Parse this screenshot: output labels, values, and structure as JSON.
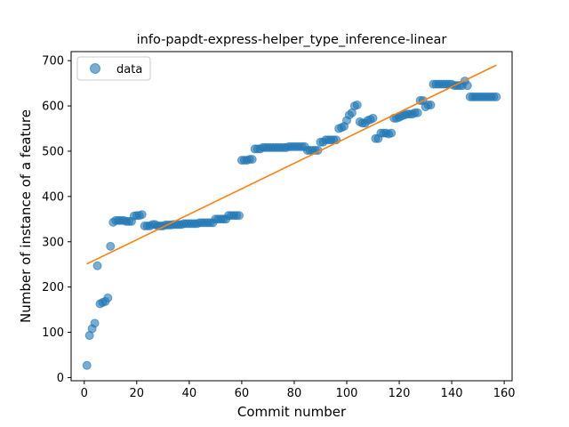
{
  "chart_data": {
    "type": "scatter",
    "title": "info-papdt-express-helper_type_inference-linear",
    "xlabel": "Commit number",
    "ylabel": "Number of instance of a feature",
    "xlim": [
      -5,
      163
    ],
    "ylim": [
      -7,
      720
    ],
    "xticks": [
      0,
      20,
      40,
      60,
      80,
      100,
      120,
      140,
      160
    ],
    "yticks": [
      0,
      100,
      200,
      300,
      400,
      500,
      600,
      700
    ],
    "grid": false,
    "legend": {
      "placement": "top-left",
      "entries": [
        "data"
      ]
    },
    "colors": {
      "data": "#1f77b4",
      "fit": "#ff7f0e"
    },
    "series": [
      {
        "name": "data",
        "kind": "scatter",
        "x": [
          1,
          2,
          3,
          4,
          5,
          6,
          7,
          8,
          9,
          10,
          11,
          12,
          13,
          14,
          15,
          16,
          17,
          18,
          19,
          20,
          21,
          22,
          23,
          24,
          25,
          26,
          27,
          28,
          29,
          30,
          31,
          32,
          33,
          34,
          35,
          36,
          37,
          38,
          39,
          40,
          41,
          42,
          43,
          44,
          45,
          46,
          47,
          48,
          49,
          50,
          51,
          52,
          53,
          54,
          55,
          56,
          57,
          58,
          59,
          60,
          61,
          62,
          63,
          64,
          65,
          66,
          67,
          68,
          69,
          70,
          71,
          72,
          73,
          74,
          75,
          76,
          77,
          78,
          79,
          80,
          81,
          82,
          83,
          84,
          85,
          86,
          87,
          88,
          89,
          90,
          91,
          92,
          93,
          94,
          95,
          96,
          97,
          98,
          99,
          100,
          101,
          102,
          103,
          104,
          105,
          106,
          107,
          108,
          109,
          110,
          111,
          112,
          113,
          114,
          115,
          116,
          117,
          118,
          119,
          120,
          121,
          122,
          123,
          124,
          125,
          126,
          127,
          128,
          129,
          130,
          131,
          132,
          133,
          134,
          135,
          136,
          137,
          138,
          139,
          140,
          141,
          142,
          143,
          144,
          145,
          146,
          147,
          148,
          149,
          150,
          151,
          152,
          153,
          154,
          155,
          156,
          157
        ],
        "y": [
          27,
          93,
          108,
          120,
          247,
          163,
          166,
          168,
          176,
          290,
          343,
          347,
          347,
          347,
          347,
          345,
          345,
          345,
          357,
          358,
          358,
          360,
          335,
          335,
          335,
          338,
          338,
          335,
          335,
          335,
          337,
          337,
          337,
          338,
          338,
          338,
          338,
          340,
          340,
          340,
          340,
          340,
          340,
          342,
          342,
          342,
          342,
          342,
          342,
          350,
          350,
          350,
          350,
          350,
          358,
          358,
          358,
          358,
          358,
          480,
          480,
          480,
          482,
          482,
          505,
          505,
          505,
          508,
          508,
          508,
          508,
          508,
          508,
          508,
          508,
          508,
          508,
          510,
          510,
          510,
          510,
          510,
          510,
          510,
          502,
          502,
          502,
          502,
          502,
          520,
          520,
          525,
          525,
          525,
          525,
          525,
          550,
          552,
          555,
          568,
          580,
          585,
          600,
          602,
          565,
          562,
          562,
          568,
          570,
          573,
          528,
          528,
          540,
          540,
          540,
          538,
          540,
          573,
          573,
          575,
          578,
          580,
          582,
          582,
          582,
          585,
          585,
          612,
          612,
          598,
          602,
          602,
          648,
          648,
          648,
          648,
          648,
          648,
          648,
          648,
          645,
          645,
          645,
          645,
          655,
          645,
          620,
          620,
          620,
          620,
          620,
          620,
          620,
          620,
          620,
          620,
          620
        ]
      },
      {
        "name": "",
        "kind": "line",
        "x": [
          1,
          157
        ],
        "y": [
          251,
          690
        ]
      }
    ]
  }
}
